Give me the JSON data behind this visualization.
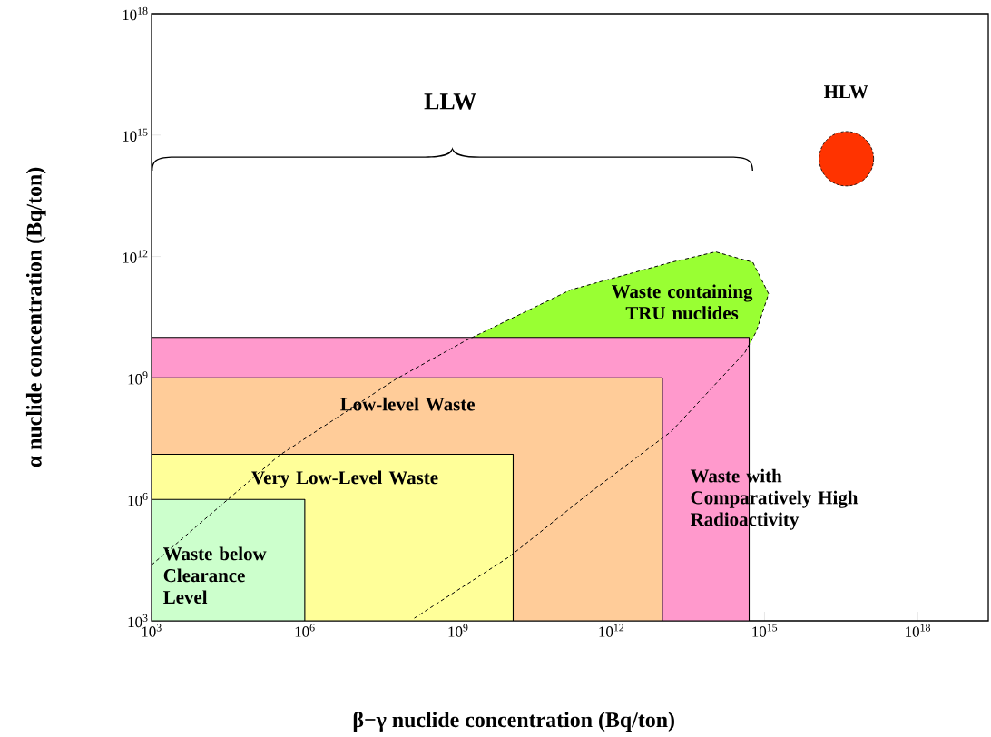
{
  "chart_data": {
    "type": "area",
    "log": "xy",
    "xlabel": "β−γ nuclide concentration (Bq/ton)",
    "ylabel": "α nuclide concentration (Bq/ton)",
    "xlim": [
      1000.0,
      2.4e+19
    ],
    "ylim": [
      1000.0,
      1e+18
    ],
    "xticks": [
      {
        "value": 1000.0,
        "label": "10$^{3}$"
      },
      {
        "value": 1000000.0,
        "label": "10$^{6}$"
      },
      {
        "value": 1000000000.0,
        "label": "10$^{9}$"
      },
      {
        "value": 1000000000000.0,
        "label": "10$^{12}$"
      },
      {
        "value": 1000000000000000.0,
        "label": "10$^{15}$"
      },
      {
        "value": 1e+18,
        "label": "10$^{18}$"
      }
    ],
    "yticks": [
      {
        "value": 1000.0,
        "label": "10$^{3}$"
      },
      {
        "value": 1000000.0,
        "label": "10$^{6}$"
      },
      {
        "value": 1000000000.0,
        "label": "10$^{9}$"
      },
      {
        "value": 1000000000000.0,
        "label": "10$^{12}$"
      },
      {
        "value": 1000000000000000.0,
        "label": "10$^{15}$"
      },
      {
        "value": 1e+18,
        "label": "10$^{18}$"
      }
    ],
    "annotations": [
      "LLW"
    ],
    "series": [
      {
        "name": "Waste containing TRU nuclides",
        "color": "#99ff33",
        "line_style": "dashed",
        "x": [
          1000.0,
          310000.0,
          62000000.0,
          1400000000.0,
          160000000000.0,
          15000000000000.0,
          110000000000000.0,
          590000000000000.0,
          1200000000000000.0,
          690000000000000.0,
          410000000000000.0,
          15000000000000.0,
          390000000000.0,
          10000000000.0,
          130000000.0
        ],
        "values": [
          24000.0,
          12000000.0,
          950000000.0,
          8300000000.0,
          150000000000.0,
          720000000000.0,
          1300000000000.0,
          720000000000.0,
          120000000000.0,
          14000000000.0,
          4200000000.0,
          48000000.0,
          1500000.0,
          38000.0,
          1100.0
        ]
      },
      {
        "name": "Waste with Comparatively High Radioactivity",
        "color": "#ff99cc",
        "x": [
          1000.0,
          500000000000000.0
        ],
        "values": [
          10000000000.0,
          10000000000.0
        ]
      },
      {
        "name": "Low-level Waste",
        "color": "#ffcc99",
        "x": [
          1000.0,
          10000000000000.0
        ],
        "values": [
          1000000000.0,
          1000000000.0
        ]
      },
      {
        "name": "Very Low-Level Waste",
        "color": "#ffff99",
        "x": [
          1000.0,
          12000000000.0
        ],
        "values": [
          13000000.0,
          13000000.0
        ]
      },
      {
        "name": "Waste below Clearance Level",
        "color": "#ccffcc",
        "x": [
          1000.0,
          1000000.0
        ],
        "values": [
          1000000.0,
          1000000.0
        ]
      },
      {
        "name": "HLW",
        "type": "scatter",
        "color": "#ff3300",
        "x": [
          4e+16
        ],
        "values": [
          260000000000000.0
        ]
      }
    ]
  }
}
